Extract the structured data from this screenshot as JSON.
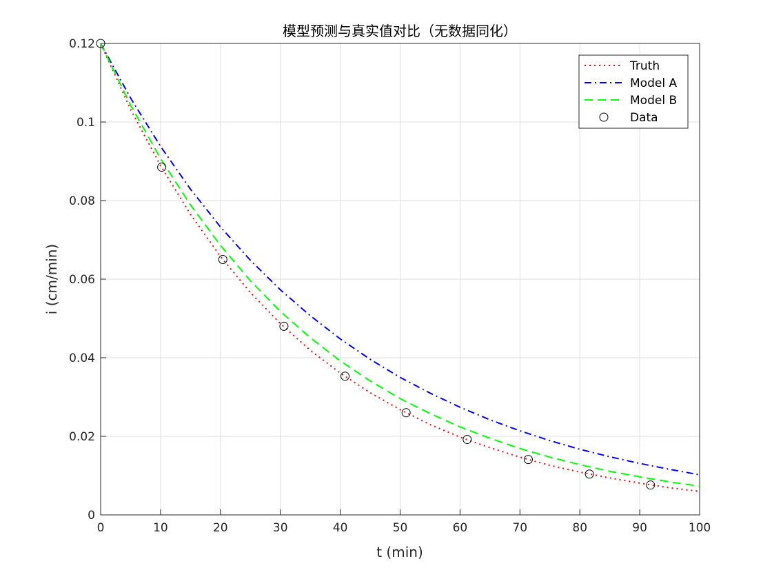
{
  "chart_data": {
    "type": "line",
    "title": "模型预测与真实值对比（无数据同化）",
    "xlabel": "t (min)",
    "ylabel": "i (cm/min)",
    "xlim": [
      0,
      100
    ],
    "ylim": [
      0,
      0.12
    ],
    "x_ticks": [
      0,
      10,
      20,
      30,
      40,
      50,
      60,
      70,
      80,
      90,
      100
    ],
    "y_ticks": [
      0,
      0.02,
      0.04,
      0.06,
      0.08,
      0.1,
      0.12
    ],
    "x_tick_labels": [
      "0",
      "10",
      "20",
      "30",
      "40",
      "50",
      "60",
      "70",
      "80",
      "90",
      "100"
    ],
    "y_tick_labels": [
      "0",
      "0.02",
      "0.04",
      "0.06",
      "0.08",
      "0.1",
      "0.12"
    ],
    "grid": true,
    "legend_position": "top-right",
    "series": [
      {
        "name": "Truth",
        "style": "dotted",
        "color": "#ff0000",
        "x": [
          0,
          5,
          10,
          15,
          20,
          25,
          30,
          35,
          40,
          45,
          50,
          55,
          60,
          65,
          70,
          75,
          80,
          85,
          90,
          95,
          100
        ],
        "y": [
          0.12,
          0.1032,
          0.0889,
          0.0765,
          0.0658,
          0.0566,
          0.0487,
          0.0419,
          0.0361,
          0.0311,
          0.0268,
          0.023,
          0.0198,
          0.0171,
          0.0147,
          0.0126,
          0.0109,
          0.0094,
          0.0081,
          0.0069,
          0.006
        ]
      },
      {
        "name": "Model A",
        "style": "dashdot",
        "color": "#0000ff",
        "x": [
          0,
          5,
          10,
          15,
          20,
          25,
          30,
          35,
          40,
          45,
          50,
          55,
          60,
          65,
          70,
          75,
          80,
          85,
          90,
          95,
          100
        ],
        "y": [
          0.12,
          0.1061,
          0.0938,
          0.0829,
          0.0733,
          0.0648,
          0.0573,
          0.0507,
          0.0448,
          0.0396,
          0.035,
          0.031,
          0.0274,
          0.0242,
          0.0214,
          0.0189,
          0.0167,
          0.0148,
          0.0131,
          0.0116,
          0.0102
        ]
      },
      {
        "name": "Model B",
        "style": "dashed",
        "color": "#00ff00",
        "x": [
          0,
          5,
          10,
          15,
          20,
          25,
          30,
          35,
          40,
          45,
          50,
          55,
          60,
          65,
          70,
          75,
          80,
          85,
          90,
          95,
          100
        ],
        "y": [
          0.12,
          0.1043,
          0.0907,
          0.0789,
          0.0686,
          0.0596,
          0.0518,
          0.0451,
          0.0392,
          0.0341,
          0.0296,
          0.0258,
          0.0224,
          0.0195,
          0.0169,
          0.0147,
          0.0128,
          0.0111,
          0.0097,
          0.0084,
          0.0073
        ]
      },
      {
        "name": "Data",
        "style": "markers",
        "marker": "circle",
        "color": "#000000",
        "x": [
          0,
          10.2,
          20.4,
          30.6,
          40.8,
          51,
          61.2,
          71.4,
          81.6,
          91.8
        ],
        "y": [
          0.12,
          0.0885,
          0.065,
          0.048,
          0.0353,
          0.026,
          0.0192,
          0.0141,
          0.0104,
          0.0076
        ]
      }
    ]
  }
}
